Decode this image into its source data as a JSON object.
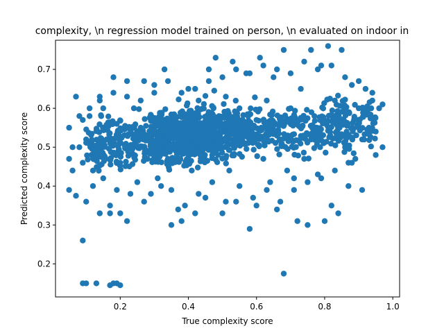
{
  "chart_data": {
    "type": "scatter",
    "title": "complexity, \\n regression model trained on person, \\n evaluated on indoor in",
    "xlabel": "True complexity score",
    "ylabel": "Predicted complexity score",
    "xlim": [
      0.01,
      1.02
    ],
    "ylim": [
      0.115,
      0.775
    ],
    "xticks": [
      0.2,
      0.4,
      0.6,
      0.8,
      1.0
    ],
    "xtick_labels": [
      "0.2",
      "0.4",
      "0.6",
      "0.8",
      "1.0"
    ],
    "yticks": [
      0.2,
      0.3,
      0.4,
      0.5,
      0.6,
      0.7
    ],
    "ytick_labels": [
      "0.2",
      "0.3",
      "0.4",
      "0.5",
      "0.6",
      "0.7"
    ],
    "grid": false,
    "marker_color": "#1f77b4",
    "points": [
      [
        0.09,
        0.26
      ],
      [
        0.09,
        0.15
      ],
      [
        0.1,
        0.15
      ],
      [
        0.13,
        0.15
      ],
      [
        0.18,
        0.15
      ],
      [
        0.19,
        0.15
      ],
      [
        0.2,
        0.145
      ],
      [
        0.17,
        0.145
      ],
      [
        0.68,
        0.175
      ],
      [
        0.07,
        0.63
      ],
      [
        0.05,
        0.55
      ],
      [
        0.06,
        0.5
      ],
      [
        0.05,
        0.47
      ],
      [
        0.06,
        0.44
      ],
      [
        0.05,
        0.39
      ],
      [
        0.07,
        0.375
      ],
      [
        0.08,
        0.5
      ],
      [
        0.09,
        0.57
      ],
      [
        0.09,
        0.46
      ],
      [
        0.1,
        0.52
      ],
      [
        0.1,
        0.36
      ],
      [
        0.11,
        0.58
      ],
      [
        0.12,
        0.4
      ],
      [
        0.13,
        0.48
      ],
      [
        0.14,
        0.63
      ],
      [
        0.14,
        0.33
      ],
      [
        0.15,
        0.6
      ],
      [
        0.16,
        0.52
      ],
      [
        0.17,
        0.35
      ],
      [
        0.17,
        0.33
      ],
      [
        0.18,
        0.68
      ],
      [
        0.19,
        0.56
      ],
      [
        0.2,
        0.33
      ],
      [
        0.2,
        0.46
      ],
      [
        0.22,
        0.67
      ],
      [
        0.22,
        0.31
      ],
      [
        0.23,
        0.5
      ],
      [
        0.24,
        0.6
      ],
      [
        0.25,
        0.41
      ],
      [
        0.26,
        0.55
      ],
      [
        0.27,
        0.67
      ],
      [
        0.28,
        0.47
      ],
      [
        0.29,
        0.38
      ],
      [
        0.3,
        0.64
      ],
      [
        0.31,
        0.52
      ],
      [
        0.32,
        0.4
      ],
      [
        0.33,
        0.7
      ],
      [
        0.34,
        0.47
      ],
      [
        0.35,
        0.3
      ],
      [
        0.36,
        0.58
      ],
      [
        0.37,
        0.34
      ],
      [
        0.38,
        0.31
      ],
      [
        0.39,
        0.55
      ],
      [
        0.4,
        0.65
      ],
      [
        0.41,
        0.44
      ],
      [
        0.42,
        0.33
      ],
      [
        0.43,
        0.62
      ],
      [
        0.44,
        0.52
      ],
      [
        0.45,
        0.37
      ],
      [
        0.46,
        0.7
      ],
      [
        0.47,
        0.48
      ],
      [
        0.48,
        0.73
      ],
      [
        0.49,
        0.58
      ],
      [
        0.5,
        0.33
      ],
      [
        0.51,
        0.63
      ],
      [
        0.52,
        0.44
      ],
      [
        0.53,
        0.72
      ],
      [
        0.54,
        0.36
      ],
      [
        0.55,
        0.6
      ],
      [
        0.56,
        0.51
      ],
      [
        0.57,
        0.69
      ],
      [
        0.58,
        0.29
      ],
      [
        0.59,
        0.55
      ],
      [
        0.6,
        0.35
      ],
      [
        0.61,
        0.73
      ],
      [
        0.62,
        0.47
      ],
      [
        0.63,
        0.62
      ],
      [
        0.64,
        0.41
      ],
      [
        0.65,
        0.68
      ],
      [
        0.66,
        0.34
      ],
      [
        0.67,
        0.52
      ],
      [
        0.68,
        0.75
      ],
      [
        0.69,
        0.44
      ],
      [
        0.7,
        0.6
      ],
      [
        0.71,
        0.39
      ],
      [
        0.72,
        0.31
      ],
      [
        0.73,
        0.65
      ],
      [
        0.74,
        0.47
      ],
      [
        0.75,
        0.3
      ],
      [
        0.76,
        0.75
      ],
      [
        0.77,
        0.58
      ],
      [
        0.78,
        0.43
      ],
      [
        0.79,
        0.71
      ],
      [
        0.8,
        0.31
      ],
      [
        0.81,
        0.76
      ],
      [
        0.82,
        0.35
      ],
      [
        0.83,
        0.62
      ],
      [
        0.84,
        0.33
      ],
      [
        0.85,
        0.75
      ],
      [
        0.86,
        0.5
      ],
      [
        0.87,
        0.4
      ],
      [
        0.88,
        0.66
      ],
      [
        0.89,
        0.47
      ],
      [
        0.9,
        0.6
      ],
      [
        0.91,
        0.39
      ],
      [
        0.92,
        0.65
      ],
      [
        0.93,
        0.55
      ],
      [
        0.94,
        0.62
      ],
      [
        0.95,
        0.48
      ],
      [
        0.96,
        0.6
      ],
      [
        0.97,
        0.5
      ],
      [
        0.97,
        0.61
      ],
      [
        0.88,
        0.46
      ],
      [
        0.12,
        0.44
      ],
      [
        0.15,
        0.42
      ],
      [
        0.19,
        0.39
      ],
      [
        0.23,
        0.38
      ],
      [
        0.27,
        0.36
      ],
      [
        0.31,
        0.42
      ],
      [
        0.35,
        0.39
      ],
      [
        0.39,
        0.35
      ],
      [
        0.43,
        0.38
      ],
      [
        0.47,
        0.41
      ],
      [
        0.51,
        0.36
      ],
      [
        0.55,
        0.4
      ],
      [
        0.59,
        0.37
      ],
      [
        0.63,
        0.39
      ],
      [
        0.67,
        0.36
      ],
      [
        0.71,
        0.42
      ],
      [
        0.75,
        0.41
      ],
      [
        0.79,
        0.42
      ],
      [
        0.83,
        0.44
      ],
      [
        0.87,
        0.46
      ],
      [
        0.91,
        0.52
      ],
      [
        0.95,
        0.54
      ],
      [
        0.08,
        0.58
      ],
      [
        0.11,
        0.6
      ],
      [
        0.14,
        0.62
      ],
      [
        0.18,
        0.64
      ],
      [
        0.22,
        0.63
      ],
      [
        0.26,
        0.62
      ],
      [
        0.3,
        0.66
      ],
      [
        0.34,
        0.67
      ],
      [
        0.38,
        0.64
      ],
      [
        0.42,
        0.65
      ],
      [
        0.46,
        0.67
      ],
      [
        0.5,
        0.68
      ],
      [
        0.54,
        0.7
      ],
      [
        0.58,
        0.69
      ],
      [
        0.62,
        0.71
      ],
      [
        0.66,
        0.7
      ],
      [
        0.7,
        0.69
      ],
      [
        0.74,
        0.72
      ],
      [
        0.78,
        0.7
      ],
      [
        0.82,
        0.71
      ],
      [
        0.86,
        0.68
      ],
      [
        0.9,
        0.67
      ],
      [
        0.94,
        0.64
      ],
      [
        0.6,
        0.57
      ],
      [
        0.55,
        0.53
      ]
    ]
  }
}
